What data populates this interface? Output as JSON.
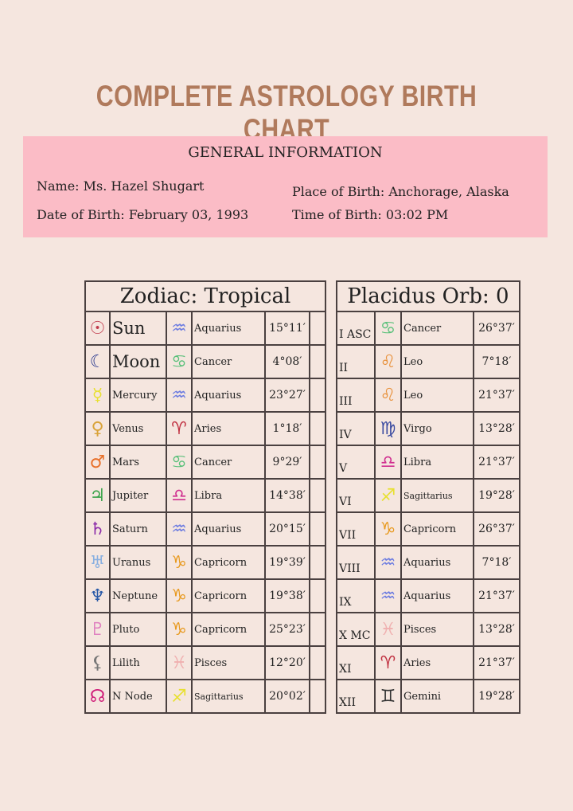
{
  "title": "COMPLETE ASTROLOGY BIRTH CHART",
  "general": {
    "heading": "GENERAL INFORMATION",
    "name": "Name: Ms. Hazel Shugart",
    "dob": "Date of Birth: February 03, 1993",
    "pob": "Place of Birth: Anchorage, Alaska",
    "tob": "Time of Birth: 03:02 PM"
  },
  "table": {
    "left_header": "Zodiac: Tropical",
    "right_header": "Placidus Orb: 0",
    "planets": [
      {
        "icon": "sun-icon",
        "color": "#c0394b",
        "name": "Sun",
        "sign_icon": "aquarius-icon",
        "sign_color": "#6a7ae0",
        "sign": "Aquarius",
        "deg": "15°11′"
      },
      {
        "icon": "moon-icon",
        "color": "#2b3a8f",
        "name": "Moon",
        "sign_icon": "cancer-icon",
        "sign_color": "#5ac07a",
        "sign": "Cancer",
        "deg": "4°08′"
      },
      {
        "icon": "mercury-icon",
        "color": "#e8e030",
        "name": "Mercury",
        "sign_icon": "aquarius-icon",
        "sign_color": "#6a7ae0",
        "sign": "Aquarius",
        "deg": "23°27′"
      },
      {
        "icon": "venus-icon",
        "color": "#d9a33a",
        "name": "Venus",
        "sign_icon": "aries-icon",
        "sign_color": "#c03040",
        "sign": "Aries",
        "deg": "1°18′"
      },
      {
        "icon": "mars-icon",
        "color": "#e8702a",
        "name": "Mars",
        "sign_icon": "cancer-icon",
        "sign_color": "#5ac07a",
        "sign": "Cancer",
        "deg": "9°29′"
      },
      {
        "icon": "jupiter-icon",
        "color": "#3aa34a",
        "name": "Jupiter",
        "sign_icon": "libra-icon",
        "sign_color": "#d03090",
        "sign": "Libra",
        "deg": "14°38′"
      },
      {
        "icon": "saturn-icon",
        "color": "#8a2aa8",
        "name": "Saturn",
        "sign_icon": "aquarius-icon",
        "sign_color": "#6a7ae0",
        "sign": "Aquarius",
        "deg": "20°15′"
      },
      {
        "icon": "uranus-icon",
        "color": "#8ab0e0",
        "name": "Uranus",
        "sign_icon": "capricorn-icon",
        "sign_color": "#e89a20",
        "sign": "Capricorn",
        "deg": "19°39′"
      },
      {
        "icon": "neptune-icon",
        "color": "#2a5aa8",
        "name": "Neptune",
        "sign_icon": "capricorn-icon",
        "sign_color": "#e89a20",
        "sign": "Capricorn",
        "deg": "19°38′"
      },
      {
        "icon": "pluto-icon",
        "color": "#e080c0",
        "name": "Pluto",
        "sign_icon": "capricorn-icon",
        "sign_color": "#e89a20",
        "sign": "Capricorn",
        "deg": "25°23′"
      },
      {
        "icon": "lilith-icon",
        "color": "#777777",
        "name": "Lilith",
        "sign_icon": "pisces-icon",
        "sign_color": "#f0b0b0",
        "sign": "Pisces",
        "deg": "12°20′"
      },
      {
        "icon": "north-node-icon",
        "color": "#d0207a",
        "name": "N Node",
        "sign_icon": "sagittarius-icon",
        "sign_color": "#e8e030",
        "sign": "Sagittarius",
        "deg": "20°02′"
      }
    ],
    "houses": [
      {
        "house": "I ASC",
        "sign_icon": "cancer-icon",
        "sign_color": "#5ac07a",
        "sign": "Cancer",
        "deg": "26°37′"
      },
      {
        "house": "II",
        "sign_icon": "leo-icon",
        "sign_color": "#e8903a",
        "sign": "Leo",
        "deg": "7°18′"
      },
      {
        "house": "III",
        "sign_icon": "leo-icon",
        "sign_color": "#e8903a",
        "sign": "Leo",
        "deg": "21°37′"
      },
      {
        "house": "IV",
        "sign_icon": "virgo-icon",
        "sign_color": "#3a4aa0",
        "sign": "Virgo",
        "deg": "13°28′"
      },
      {
        "house": "V",
        "sign_icon": "libra-icon",
        "sign_color": "#d03090",
        "sign": "Libra",
        "deg": "21°37′"
      },
      {
        "house": "VI",
        "sign_icon": "sagittarius-icon",
        "sign_color": "#e8e030",
        "sign": "Sagittarius",
        "deg": "19°28′"
      },
      {
        "house": "VII",
        "sign_icon": "capricorn-icon",
        "sign_color": "#e89a20",
        "sign": "Capricorn",
        "deg": "26°37′"
      },
      {
        "house": "VIII",
        "sign_icon": "aquarius-icon",
        "sign_color": "#6a7ae0",
        "sign": "Aquarius",
        "deg": "7°18′"
      },
      {
        "house": "IX",
        "sign_icon": "aquarius-icon",
        "sign_color": "#6a7ae0",
        "sign": "Aquarius",
        "deg": "21°37′"
      },
      {
        "house": "X MC",
        "sign_icon": "pisces-icon",
        "sign_color": "#f0b0b0",
        "sign": "Pisces",
        "deg": "13°28′"
      },
      {
        "house": "XI",
        "sign_icon": "aries-icon",
        "sign_color": "#c03040",
        "sign": "Aries",
        "deg": "21°37′"
      },
      {
        "house": "XII",
        "sign_icon": "gemini-icon",
        "sign_color": "#333333",
        "sign": "Gemini",
        "deg": "19°28′"
      }
    ]
  }
}
